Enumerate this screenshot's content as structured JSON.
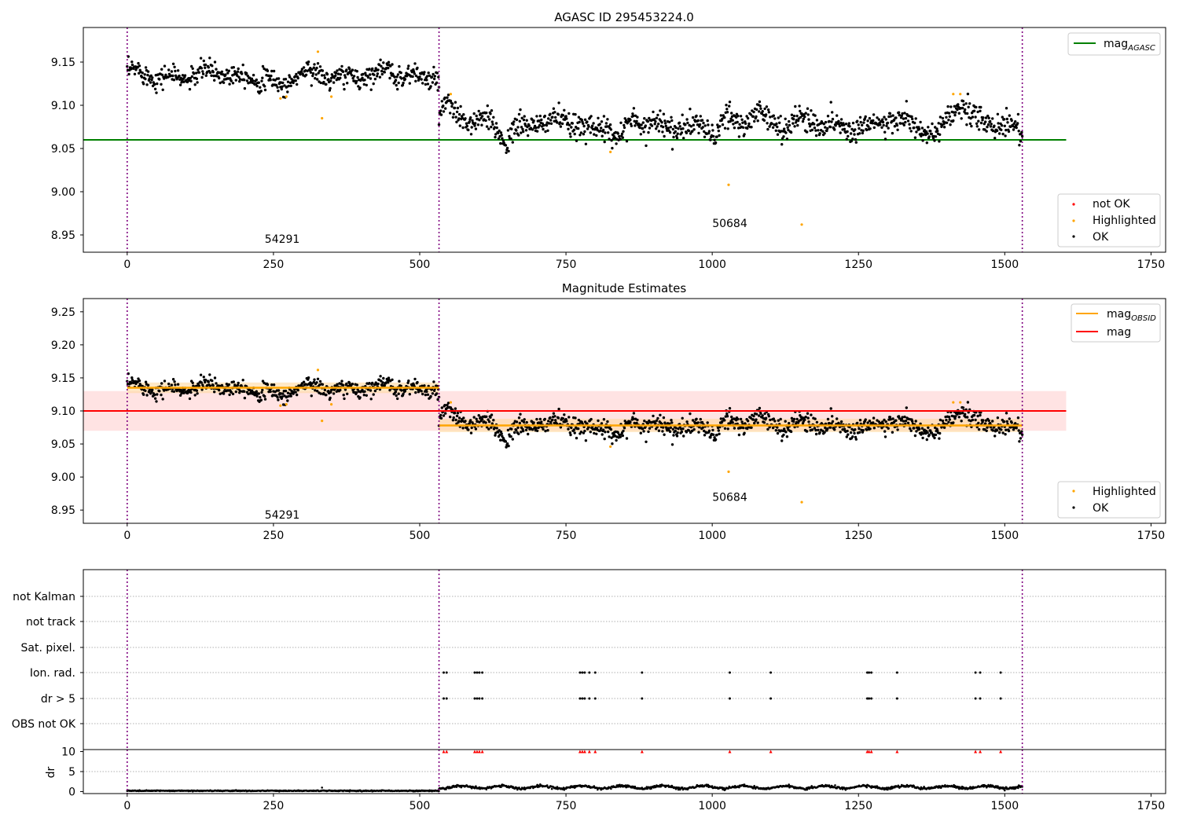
{
  "colors": {
    "ok": "#000000",
    "highlighted": "#ffa500",
    "not_ok": "#ff0000",
    "mag_agasc": "#008000",
    "mag_obsid": "#ffa500",
    "mag": "#ff0000",
    "obsid_separator": "#800080",
    "mag_band": "#ffc0c0",
    "obsid_band": "#ffd9a0"
  },
  "chart_data": [
    {
      "type": "scatter",
      "title": "AGASC ID 295453224.0",
      "xlim": [
        -75,
        1775
      ],
      "ylim": [
        8.93,
        9.19
      ],
      "xticks": [
        0,
        250,
        500,
        750,
        1000,
        1250,
        1500,
        1750
      ],
      "yticks": [
        8.95,
        9.0,
        9.05,
        9.1,
        9.15
      ],
      "ytick_labels": [
        "8.95",
        "9.00",
        "9.05",
        "9.10",
        "9.15"
      ],
      "legend_top": {
        "position": "upper right",
        "entries": [
          {
            "label": "mag",
            "subscript": "AGASC",
            "style": "line",
            "color": "#008000"
          }
        ]
      },
      "legend_bottom": {
        "position": "lower right",
        "entries": [
          {
            "label": "not OK",
            "style": "dot",
            "color": "#ff0000"
          },
          {
            "label": "Highlighted",
            "style": "dot",
            "color": "#ffa500"
          },
          {
            "label": "OK",
            "style": "dot",
            "color": "#000000"
          }
        ]
      },
      "hlines": [
        {
          "name": "mag_AGASC",
          "y": 9.06,
          "x0": -75,
          "x1": 1605,
          "color": "#008000"
        }
      ],
      "vlines": [
        0,
        533,
        1530
      ],
      "obsids": [
        {
          "label": "54291",
          "x": 265,
          "y": 8.941
        },
        {
          "label": "50684",
          "x": 1030,
          "y": 8.959
        }
      ],
      "segments": [
        {
          "obsid": "54291",
          "x0": 0,
          "x1": 533,
          "mean": 9.135,
          "amplitude": 0.007,
          "scatter": 0.006,
          "dips": [
            {
              "x": 265,
              "depth": 0.015,
              "width": 18
            }
          ]
        },
        {
          "obsid": "50684",
          "x0": 533,
          "x1": 1530,
          "mean": 9.078,
          "amplitude": 0.008,
          "scatter": 0.007,
          "dips": [
            {
              "x": 650,
              "depth": 0.012,
              "width": 15
            },
            {
              "x": 840,
              "depth": 0.014,
              "width": 14
            },
            {
              "x": 1000,
              "depth": 0.012,
              "width": 15
            },
            {
              "x": 1380,
              "depth": 0.01,
              "width": 20
            }
          ],
          "bumps": [
            {
              "x": 545,
              "height": 0.018,
              "width": 20
            },
            {
              "x": 1080,
              "height": 0.018,
              "width": 18
            },
            {
              "x": 1420,
              "height": 0.022,
              "width": 18
            }
          ]
        }
      ],
      "highlighted_points": [
        {
          "x": 262,
          "y": 9.108
        },
        {
          "x": 272,
          "y": 9.11
        },
        {
          "x": 326,
          "y": 9.162
        },
        {
          "x": 333,
          "y": 9.085
        },
        {
          "x": 349,
          "y": 9.11
        },
        {
          "x": 553,
          "y": 9.113
        },
        {
          "x": 826,
          "y": 9.046
        },
        {
          "x": 1028,
          "y": 9.008
        },
        {
          "x": 1153,
          "y": 8.962
        },
        {
          "x": 1412,
          "y": 9.113
        },
        {
          "x": 1424,
          "y": 9.113
        }
      ]
    },
    {
      "type": "scatter",
      "title": "Magnitude Estimates",
      "xlim": [
        -75,
        1775
      ],
      "ylim": [
        8.93,
        9.27
      ],
      "xticks": [
        0,
        250,
        500,
        750,
        1000,
        1250,
        1500,
        1750
      ],
      "yticks": [
        8.95,
        9.0,
        9.05,
        9.1,
        9.15,
        9.2,
        9.25
      ],
      "ytick_labels": [
        "8.95",
        "9.00",
        "9.05",
        "9.10",
        "9.15",
        "9.20",
        "9.25"
      ],
      "legend_top": {
        "position": "upper right",
        "entries": [
          {
            "label": "mag",
            "subscript": "OBSID",
            "style": "line",
            "color": "#ffa500"
          },
          {
            "label": "mag",
            "subscript": "",
            "style": "line",
            "color": "#ff0000"
          }
        ]
      },
      "legend_bottom": {
        "position": "lower right",
        "entries": [
          {
            "label": "Highlighted",
            "style": "dot",
            "color": "#ffa500"
          },
          {
            "label": "OK",
            "style": "dot",
            "color": "#000000"
          }
        ]
      },
      "mag_line": {
        "y": 9.1,
        "band": [
          9.07,
          9.13
        ],
        "x0": -75,
        "x1": 1605
      },
      "obsid_lines": [
        {
          "x0": 0,
          "x1": 533,
          "y": 9.135,
          "band": [
            9.127,
            9.143
          ]
        },
        {
          "x0": 533,
          "x1": 1530,
          "y": 9.078,
          "band": [
            9.068,
            9.088
          ]
        }
      ],
      "vlines": [
        0,
        533,
        1530
      ],
      "obsids": [
        {
          "label": "54291",
          "x": 265,
          "y": 8.937
        },
        {
          "label": "50684",
          "x": 1030,
          "y": 8.964
        }
      ]
    },
    {
      "type": "flags",
      "xlim": [
        -75,
        1775
      ],
      "categories": [
        "not Kalman",
        "not track",
        "Sat. pixel.",
        "Ion. rad.",
        "dr > 5",
        "OBS not OK"
      ],
      "flag_x": [
        541,
        546,
        594,
        598,
        602,
        607,
        774,
        778,
        782,
        790,
        800,
        880,
        1030,
        1100,
        1265,
        1268,
        1272,
        1316,
        1450,
        1458,
        1493
      ],
      "flagged_categories": [
        "Ion. rad.",
        "dr > 5"
      ],
      "vlines": [
        0,
        533,
        1530
      ]
    },
    {
      "type": "scatter",
      "ylabel": "dr",
      "xlim": [
        -75,
        1775
      ],
      "ylim": [
        -0.5,
        10.5
      ],
      "xticks": [
        0,
        250,
        500,
        750,
        1000,
        1250,
        1500,
        1750
      ],
      "yticks": [
        0,
        5,
        10
      ],
      "segments": [
        {
          "x0": 0,
          "x1": 533,
          "mean": 0.2
        },
        {
          "x0": 533,
          "x1": 1530,
          "mean": 1.1
        }
      ],
      "outlier_points": [
        {
          "x": 333,
          "y": 1.0
        }
      ],
      "clipped_x": [
        541,
        546,
        594,
        598,
        602,
        607,
        774,
        778,
        782,
        790,
        800,
        880,
        1030,
        1100,
        1265,
        1268,
        1272,
        1316,
        1450,
        1458,
        1493
      ],
      "clipped_y": 10,
      "vlines": [
        0,
        533,
        1530
      ]
    }
  ]
}
